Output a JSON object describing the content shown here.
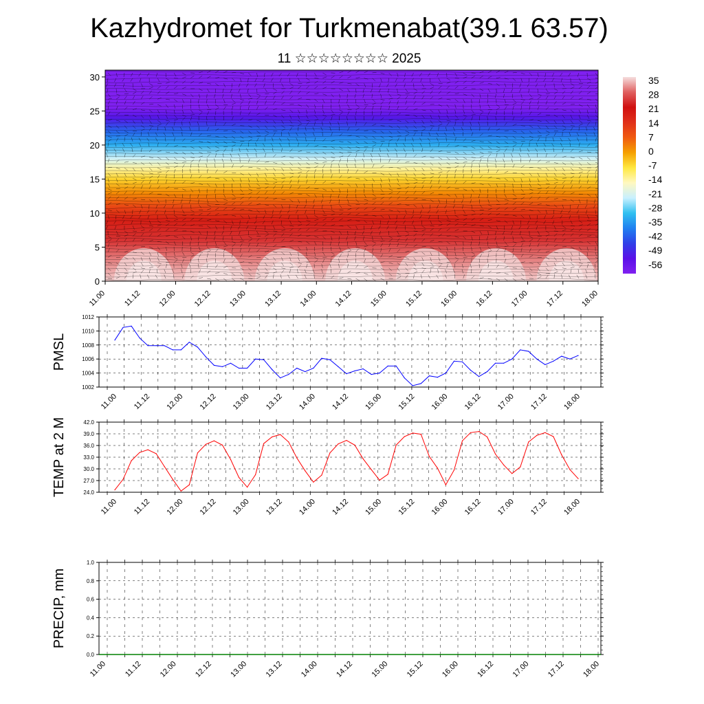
{
  "figure": {
    "title": "Kazhydromet for Turkmenabat(39.1 63.57)",
    "subtitle": "11 ☆☆☆☆☆☆☆☆ 2025"
  },
  "chart_data": [
    {
      "type": "heatmap",
      "title": "",
      "ylabel": "",
      "ylim": [
        0,
        31
      ],
      "y_ticks": [
        "0",
        "5",
        "10",
        "15",
        "20",
        "25",
        "30"
      ],
      "x_ticks": [
        "11.00",
        "11.12",
        "12.00",
        "12.12",
        "13.00",
        "13.12",
        "14.00",
        "14.12",
        "15.00",
        "15.12",
        "16.00",
        "16.12",
        "17.00",
        "17.12",
        "18.00"
      ],
      "colorbar_labels": [
        "35",
        "28",
        "21",
        "14",
        "7",
        "0",
        "-7",
        "-14",
        "-21",
        "-28",
        "-35",
        "-42",
        "-49",
        "-56"
      ],
      "colorbar_colors": [
        "#f6dede",
        "#e06060",
        "#d01010",
        "#e0301a",
        "#f05a10",
        "#f5a000",
        "#ffe840",
        "#fff8c0",
        "#c8f0ff",
        "#30c0f0",
        "#2080f0",
        "#3040e8",
        "#5a10e8",
        "#8020f0"
      ],
      "color_range": [
        -56,
        35
      ],
      "levels_profile": [
        {
          "height": 0,
          "value": 34
        },
        {
          "height": 3,
          "value": 30
        },
        {
          "height": 6,
          "value": 24
        },
        {
          "height": 9,
          "value": 18
        },
        {
          "height": 11,
          "value": 10
        },
        {
          "height": 13,
          "value": 2
        },
        {
          "height": 15,
          "value": -5
        },
        {
          "height": 16.5,
          "value": -12
        },
        {
          "height": 18,
          "value": -20
        },
        {
          "height": 20,
          "value": -30
        },
        {
          "height": 22,
          "value": -38
        },
        {
          "height": 24,
          "value": -48
        },
        {
          "height": 25.5,
          "value": -56
        },
        {
          "height": 31,
          "value": -58
        }
      ]
    },
    {
      "type": "line",
      "ylabel": "PMSL",
      "ylim": [
        1002,
        1012
      ],
      "y_ticks": [
        "1002",
        "1004",
        "1006",
        "1008",
        "1010",
        "1012"
      ],
      "x_ticks": [
        "11.00",
        "11.12",
        "12.00",
        "12.12",
        "13.00",
        "13.12",
        "14.00",
        "14.12",
        "15.00",
        "15.12",
        "16.00",
        "16.12",
        "17.00",
        "17.12",
        "18.00"
      ],
      "color": "#0000ff",
      "x_step_hours": 3,
      "values": [
        1008.7,
        1010.5,
        1010.7,
        1009.0,
        1007.9,
        1007.9,
        1007.9,
        1007.3,
        1007.3,
        1008.4,
        1007.7,
        1006.3,
        1005.1,
        1004.9,
        1005.4,
        1004.7,
        1004.7,
        1006.0,
        1005.9,
        1004.5,
        1003.3,
        1003.8,
        1004.7,
        1004.2,
        1004.7,
        1006.1,
        1005.9,
        1004.9,
        1003.9,
        1004.3,
        1004.6,
        1003.8,
        1004.0,
        1005.0,
        1005.0,
        1003.3,
        1002.2,
        1002.5,
        1003.6,
        1003.4,
        1004.0,
        1005.7,
        1005.6,
        1004.4,
        1003.5,
        1004.2,
        1005.4,
        1005.4,
        1006.0,
        1007.3,
        1007.1,
        1006.0,
        1005.2,
        1005.7,
        1006.4,
        1006.0,
        1006.5
      ]
    },
    {
      "type": "line",
      "ylabel": "TEMP at 2 M",
      "ylim": [
        24.0,
        42.0
      ],
      "y_ticks": [
        "24.0",
        "27.0",
        "30.0",
        "33.0",
        "36.0",
        "39.0",
        "42.0"
      ],
      "x_ticks": [
        "11.00",
        "11.12",
        "12.00",
        "12.12",
        "13.00",
        "13.12",
        "14.00",
        "14.12",
        "15.00",
        "15.12",
        "16.00",
        "16.12",
        "17.00",
        "17.12",
        "18.00"
      ],
      "color": "#ff0000",
      "x_step_hours": 3,
      "values": [
        24.6,
        27.3,
        32.1,
        34.2,
        34.9,
        33.9,
        30.6,
        27.3,
        24.3,
        25.9,
        34.1,
        36.3,
        37.2,
        36.1,
        32.4,
        27.8,
        25.3,
        28.5,
        36.5,
        38.2,
        38.8,
        36.9,
        32.8,
        29.5,
        26.6,
        28.4,
        34.1,
        36.4,
        37.3,
        36.1,
        32.6,
        29.8,
        27.1,
        28.6,
        36.1,
        38.3,
        39.2,
        38.9,
        33.2,
        30.2,
        25.9,
        29.7,
        37.2,
        39.3,
        39.6,
        38.2,
        33.8,
        31.0,
        28.8,
        30.5,
        36.9,
        38.6,
        39.3,
        38.3,
        33.6,
        29.8,
        27.5
      ]
    },
    {
      "type": "bar",
      "ylabel": "PRECIP, mm",
      "ylim": [
        0.0,
        1.0
      ],
      "y_ticks": [
        "0.0",
        "0.2",
        "0.4",
        "0.6",
        "0.8",
        "1.0"
      ],
      "x_ticks": [
        "11.00",
        "11.12",
        "12.00",
        "12.12",
        "13.00",
        "13.12",
        "14.00",
        "14.12",
        "15.00",
        "15.12",
        "16.00",
        "16.12",
        "17.00",
        "17.12",
        "18.00"
      ],
      "color": "#008000",
      "x_step_hours": 3,
      "values": [
        0,
        0,
        0,
        0,
        0,
        0,
        0,
        0,
        0,
        0,
        0,
        0,
        0,
        0,
        0,
        0,
        0,
        0,
        0,
        0,
        0,
        0,
        0,
        0,
        0,
        0,
        0,
        0,
        0,
        0,
        0,
        0,
        0,
        0,
        0,
        0,
        0,
        0,
        0,
        0,
        0,
        0,
        0,
        0,
        0,
        0,
        0,
        0,
        0,
        0,
        0,
        0,
        0,
        0,
        0,
        0,
        0
      ]
    }
  ]
}
